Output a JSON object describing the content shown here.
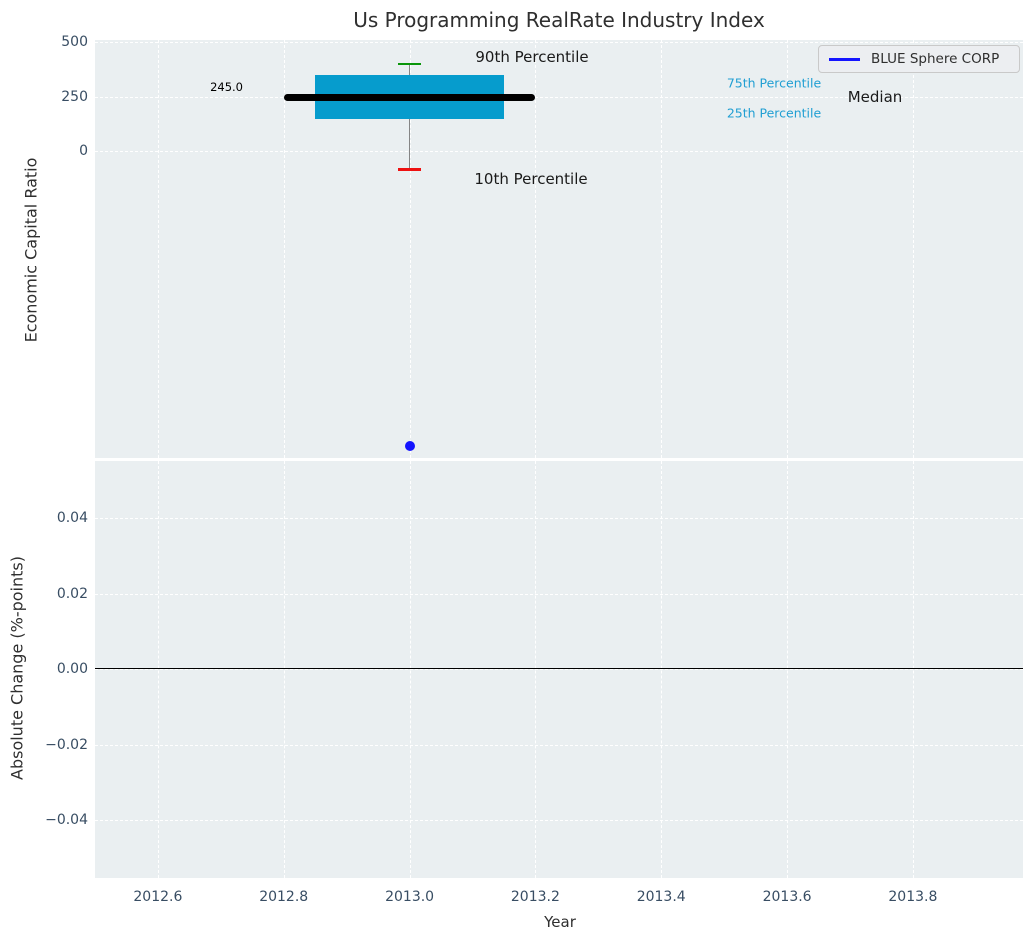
{
  "title": "Us Programming RealRate Industry Index",
  "colors": {
    "figure_bg": "#ffffff",
    "axes_bg": "#eaeff1",
    "grid": "#ffffff",
    "tick_label": "#384d63",
    "text_dark": "#2f2f2f",
    "annotation_black": "#1a1a1a",
    "box_fill": "#069ccd",
    "percentile_label": "#219fd3",
    "p90_cap": "#0a960a",
    "p10_cap": "#ee1111",
    "whisker": "#858585",
    "median_line": "#000000",
    "company_blue": "#1414ff",
    "legend_bg": "#eceef1",
    "legend_border": "#c9c9c9",
    "zero_line": "#000000"
  },
  "top_axes": {
    "ylabel": "Economic Capital Ratio",
    "ytick_labels": [
      "500",
      "250",
      "0"
    ],
    "median_value_label": "245.0",
    "p90_label": "90th Percentile",
    "p10_label": "10th Percentile",
    "p75_label": "75th Percentile",
    "p25_label": "25th Percentile",
    "median_label": "Median"
  },
  "legend": {
    "label": "BLUE Sphere CORP"
  },
  "bottom_axes": {
    "ylabel": "Absolute Change (%-points)",
    "ytick_labels": [
      "0.04",
      "0.02",
      "0.00",
      "−0.02",
      "−0.04"
    ]
  },
  "xaxis": {
    "label": "Year",
    "tick_labels": [
      "2012.6",
      "2012.8",
      "2013.0",
      "2013.2",
      "2013.4",
      "2013.6",
      "2013.8"
    ]
  },
  "chart_data": {
    "type": "box",
    "title": "Us Programming RealRate Industry Index",
    "xlabel": "Year",
    "xlim": [
      2012.5,
      2013.975
    ],
    "xticks": [
      2012.6,
      2012.8,
      2013.0,
      2013.2,
      2013.4,
      2013.6,
      2013.8
    ],
    "grid": true,
    "legend_position": "upper right",
    "subplots": [
      {
        "ylabel": "Economic Capital Ratio",
        "yticks": [
          500,
          250,
          0
        ],
        "ylim": [
          -1410,
          510
        ],
        "industry_box": {
          "x_center": 2013.0,
          "median": 245.0,
          "q1": 145,
          "q3": 350,
          "p10": -85,
          "p90": 400,
          "box_x_span": [
            2012.85,
            2013.15
          ],
          "median_x_span": [
            2012.8,
            2013.2
          ],
          "cap_x_span": [
            2012.981,
            2013.019
          ]
        },
        "company_point": {
          "name": "BLUE Sphere CORP",
          "x": 2013.0,
          "y": -1355
        }
      },
      {
        "ylabel": "Absolute Change (%-points)",
        "yticks": [
          0.04,
          0.02,
          0.0,
          -0.02,
          -0.04
        ],
        "ylim": [
          -0.0553,
          0.0551
        ],
        "zero_line": 0.0,
        "series": []
      }
    ]
  }
}
